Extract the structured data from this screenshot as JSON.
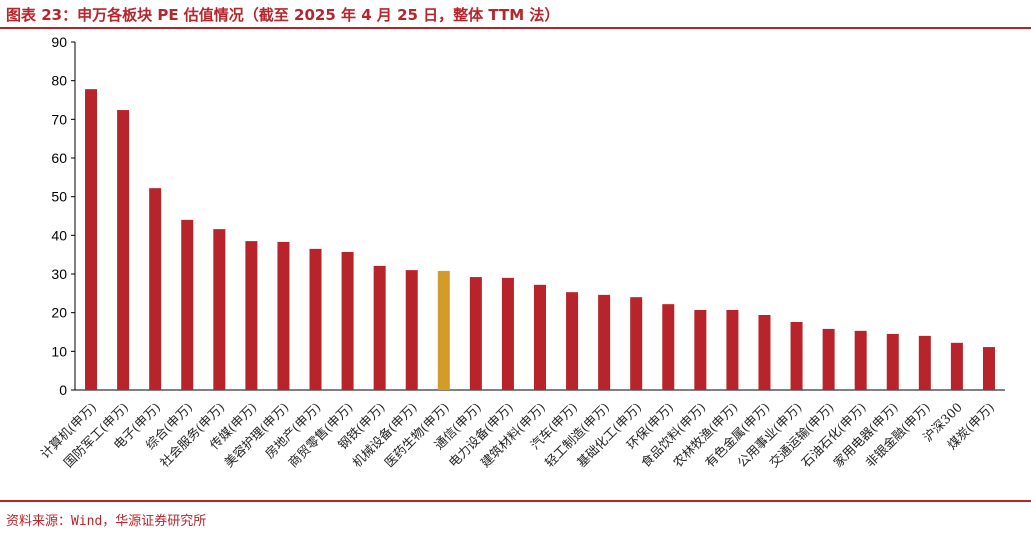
{
  "title": "图表 23：申万各板块 PE 估值情况（截至 2025 年 4 月 25 日，整体 TTM 法）",
  "source": "资料来源：Wind，华源证券研究所",
  "colors": {
    "bar": "#b8242b",
    "highlight": "#d39b2a",
    "title": "#b8242b"
  },
  "chart_data": {
    "type": "bar",
    "title": "",
    "xlabel": "",
    "ylabel": "",
    "ylim": [
      0,
      90
    ],
    "yticks": [
      0,
      10,
      20,
      30,
      40,
      50,
      60,
      70,
      80,
      90
    ],
    "grid": false,
    "highlight_category": "医药生物(申万)",
    "categories": [
      "计算机(申万)",
      "国防军工(申万)",
      "电子(申万)",
      "综合(申万)",
      "社会服务(申万)",
      "传媒(申万)",
      "美容护理(申万)",
      "房地产(申万)",
      "商贸零售(申万)",
      "钢铁(申万)",
      "机械设备(申万)",
      "医药生物(申万)",
      "通信(申万)",
      "电力设备(申万)",
      "建筑材料(申万)",
      "汽车(申万)",
      "轻工制造(申万)",
      "基础化工(申万)",
      "环保(申万)",
      "食品饮料(申万)",
      "农林牧渔(申万)",
      "有色金属(申万)",
      "公用事业(申万)",
      "交通运输(申万)",
      "石油石化(申万)",
      "家用电器(申万)",
      "非银金融(申万)",
      "沪深300",
      "煤炭(申万)"
    ],
    "values": [
      77.8,
      72.4,
      52.2,
      44.0,
      41.6,
      38.5,
      38.3,
      36.5,
      35.7,
      32.1,
      31.0,
      30.8,
      29.2,
      29.0,
      27.2,
      25.3,
      24.6,
      24.0,
      22.2,
      20.7,
      20.7,
      19.4,
      17.6,
      15.8,
      15.3,
      14.5,
      14.0,
      12.2,
      11.1
    ]
  }
}
